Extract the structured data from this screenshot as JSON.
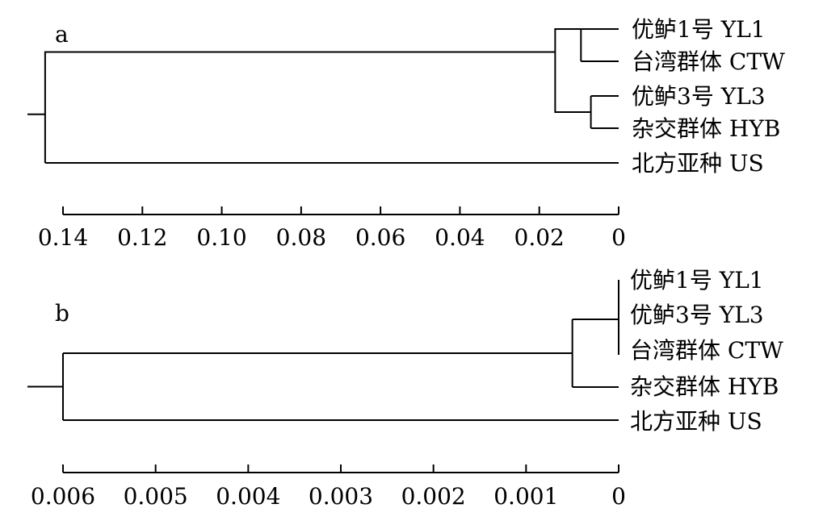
{
  "panels": [
    {
      "panel_label": "a",
      "leaves": {
        "YL1": "优鲈1号 YL1",
        "CTW": "台湾群体 CTW",
        "YL3": "优鲈3号 YL3",
        "HYB": "杂交群体 HYB",
        "US": "北方亚种 US"
      },
      "axis_max": 0.14,
      "ticks": [
        {
          "value": 0.14,
          "label": "0.14"
        },
        {
          "value": 0.12,
          "label": "0.12"
        },
        {
          "value": 0.1,
          "label": "0.10"
        },
        {
          "value": 0.08,
          "label": "0.08"
        },
        {
          "value": 0.06,
          "label": "0.06"
        },
        {
          "value": 0.04,
          "label": "0.04"
        },
        {
          "value": 0.02,
          "label": "0.02"
        },
        {
          "value": 0,
          "label": "0"
        }
      ],
      "node_heights": {
        "yl1_ctw": 0.0095,
        "yl3_hyb": 0.007,
        "inner": 0.016,
        "root": 0.1445
      }
    },
    {
      "panel_label": "b",
      "leaves": {
        "YL1": "优鲈1号 YL1",
        "YL3": "优鲈3号 YL3",
        "CTW": "台湾群体 CTW",
        "HYB": "杂交群体 HYB",
        "US": "北方亚种 US"
      },
      "axis_max": 0.006,
      "ticks": [
        {
          "value": 0.006,
          "label": "0.006"
        },
        {
          "value": 0.005,
          "label": "0.005"
        },
        {
          "value": 0.004,
          "label": "0.004"
        },
        {
          "value": 0.003,
          "label": "0.003"
        },
        {
          "value": 0.002,
          "label": "0.002"
        },
        {
          "value": 0.001,
          "label": "0.001"
        },
        {
          "value": 0,
          "label": "0"
        }
      ],
      "node_heights": {
        "yl1_yl3_ctw": 0.0,
        "inner": 0.0005,
        "root": 0.006
      }
    }
  ]
}
